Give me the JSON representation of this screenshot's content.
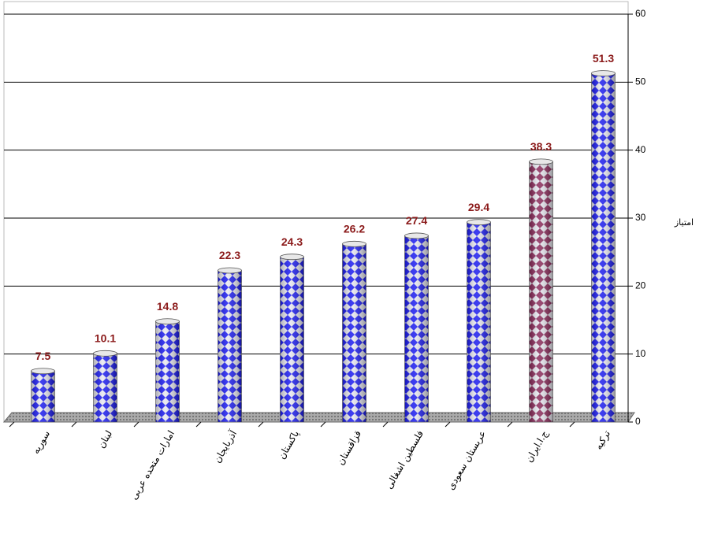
{
  "chart_data": {
    "type": "bar",
    "y_axis_label": "امتیاز",
    "categories": [
      "سوریه",
      "لبنان",
      "امارات متحده عربی",
      "آذربایجان",
      "پاکستان",
      "قزاقستان",
      "فلسطین اشغالی",
      "عربستان سعودی",
      "ج.ا.ایران",
      "ترکیه"
    ],
    "values": [
      7.5,
      10.1,
      14.8,
      22.3,
      24.3,
      26.2,
      27.4,
      29.4,
      38.3,
      51.3
    ],
    "colors": [
      "#1c1cf0",
      "#1c1cf0",
      "#1c1cf0",
      "#1c1cf0",
      "#1c1cf0",
      "#1c1cf0",
      "#1c1cf0",
      "#1c1cf0",
      "#8a2a5a",
      "#1c1cf0"
    ],
    "value_label_color": "#8b1a1a",
    "ylim": [
      0,
      60
    ],
    "yticks": [
      0,
      10,
      20,
      30,
      40,
      50,
      60
    ],
    "grid": true,
    "y_axis_side": "right"
  }
}
